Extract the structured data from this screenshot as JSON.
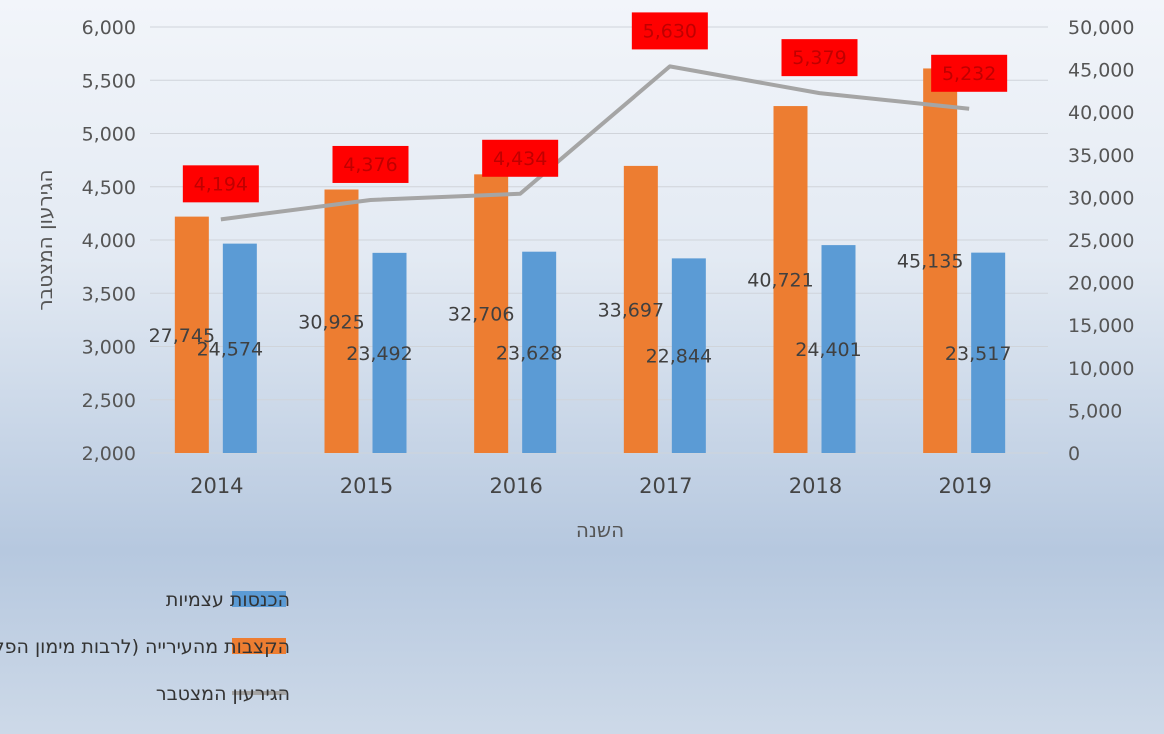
{
  "chart_data": {
    "type": "bar",
    "categories": [
      "2014",
      "2015",
      "2016",
      "2017",
      "2018",
      "2019"
    ],
    "xlabel": "השנה",
    "ylabel_left": "הגירעון המצטבר",
    "ylabel_right": "",
    "left_axis": {
      "min": 2000,
      "max": 6000,
      "step": 500
    },
    "right_axis": {
      "min": 0,
      "max": 50000,
      "step": 5000
    },
    "series": [
      {
        "name": "הקצבות מהעירייה (לרבות מימון הפקת אירועים), ומגורמים אחרים",
        "type": "bar",
        "axis": "right",
        "color": "#ed7d31",
        "values": [
          27745,
          30925,
          32706,
          33697,
          40721,
          45135
        ],
        "labels": [
          "27,745",
          "30,925",
          "32,706",
          "33,697",
          "40,721",
          "45,135"
        ]
      },
      {
        "name": "הכנסות עצמיות",
        "type": "bar",
        "axis": "right",
        "color": "#5b9bd5",
        "values": [
          24574,
          23492,
          23628,
          22844,
          24401,
          23517
        ],
        "labels": [
          "24,574",
          "23,492",
          "23,628",
          "22,844",
          "24,401",
          "23,517"
        ]
      },
      {
        "name": "הגירעון המצטבר",
        "type": "line",
        "axis": "left",
        "color": "#a5a5a5",
        "values": [
          4194,
          4376,
          4434,
          5630,
          5379,
          5232
        ],
        "labels": [
          "4,194",
          "4,376",
          "4,434",
          "5,630",
          "5,379",
          "5,232"
        ],
        "label_bg": "#ff0000"
      }
    ],
    "legend": [
      {
        "label": "הכנסות עצמיות",
        "kind": "bar",
        "color": "#5b9bd5"
      },
      {
        "label": "הקצבות מהעירייה (לרבות מימון הפקת אירועים), ומגורמים אחרים",
        "kind": "bar",
        "color": "#ed7d31"
      },
      {
        "label": "הגירעון המצטבר",
        "kind": "line",
        "color": "#a5a5a5"
      }
    ],
    "legend_position": "bottom",
    "grid": true
  }
}
